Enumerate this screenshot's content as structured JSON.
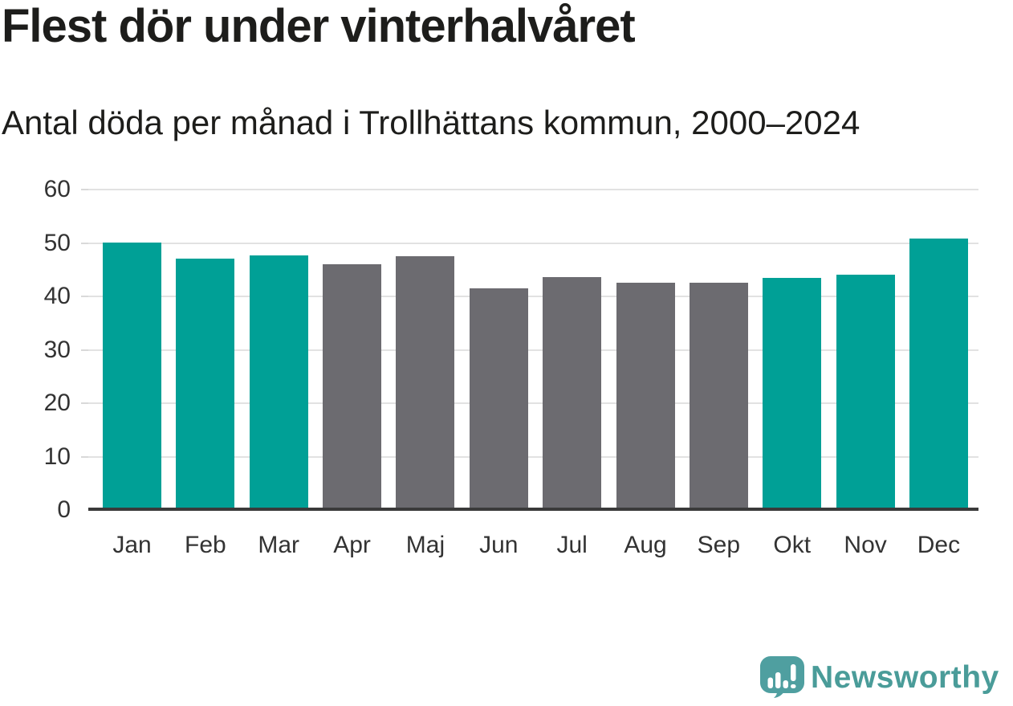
{
  "header": {
    "title": "Flest dör under vinterhalvåret",
    "subtitle": "Antal döda per månad i Trollhättans kommun, 2000–2024"
  },
  "chart_data": {
    "type": "bar",
    "title": "Flest dör under vinterhalvåret",
    "subtitle": "Antal döda per månad i Trollhättans kommun, 2000–2024",
    "categories": [
      "Jan",
      "Feb",
      "Mar",
      "Apr",
      "Maj",
      "Jun",
      "Jul",
      "Aug",
      "Sep",
      "Okt",
      "Nov",
      "Dec"
    ],
    "values": [
      50.1,
      47.0,
      47.7,
      46.0,
      47.6,
      41.5,
      43.6,
      42.6,
      42.6,
      43.4,
      44.1,
      50.9
    ],
    "highlighted": [
      true,
      true,
      true,
      false,
      false,
      false,
      false,
      false,
      false,
      true,
      true,
      true
    ],
    "highlight_color": "#00a096",
    "base_color": "#6c6b70",
    "xlabel": "",
    "ylabel": "",
    "ylim": [
      0,
      60
    ],
    "yticks": [
      0,
      10,
      20,
      30,
      40,
      50,
      60
    ],
    "grid": true,
    "legend_position": "none",
    "gridline_color": "#e2e2e2",
    "axis_line_color": "#3a3a3a",
    "label_color": "#333333"
  },
  "footer": {
    "brand": "Newsworthy",
    "brand_color": "#4a9c99",
    "logo_icon": "speech-bubble-bar-chart-exclamation",
    "logo_icon_color": "#4f9fa0"
  }
}
